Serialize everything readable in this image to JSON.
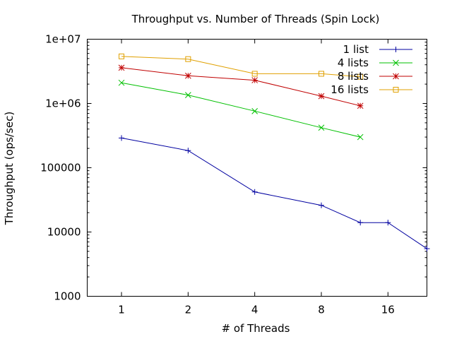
{
  "chart_data": {
    "type": "line",
    "title": "Throughput vs. Number of Threads (Spin Lock)",
    "xlabel": "# of Threads",
    "ylabel": "Throughput (ops/sec)",
    "x_scale": "log2",
    "y_scale": "log10",
    "xlim": [
      0.7,
      24
    ],
    "ylim": [
      1000,
      10000000
    ],
    "x_ticks": [
      1,
      2,
      4,
      8,
      16
    ],
    "x_tick_labels": [
      "1",
      "2",
      "4",
      "8",
      "16"
    ],
    "y_ticks": [
      1000,
      10000,
      100000,
      1000000,
      10000000
    ],
    "y_tick_labels": [
      "1000",
      "10000",
      "100000",
      "1e+06",
      "1e+07"
    ],
    "grid": false,
    "legend_position": "top-right",
    "series": [
      {
        "name": "1 list",
        "color": "#0000a0",
        "marker": "plus",
        "x": [
          1,
          2,
          4,
          8,
          12,
          16,
          24
        ],
        "y": [
          290000,
          185000,
          42000,
          26000,
          14000,
          14000,
          5500
        ]
      },
      {
        "name": "4 lists",
        "color": "#00c000",
        "marker": "cross",
        "x": [
          1,
          2,
          4,
          8,
          12
        ],
        "y": [
          2100000,
          1350000,
          760000,
          420000,
          300000
        ]
      },
      {
        "name": "8 lists",
        "color": "#c00000",
        "marker": "star",
        "x": [
          1,
          2,
          4,
          8,
          12
        ],
        "y": [
          3600000,
          2700000,
          2300000,
          1300000,
          920000
        ]
      },
      {
        "name": "16 lists",
        "color": "#e0a000",
        "marker": "square",
        "x": [
          1,
          2,
          4,
          8,
          12
        ],
        "y": [
          5400000,
          4900000,
          2900000,
          2900000,
          2600000
        ]
      }
    ]
  }
}
